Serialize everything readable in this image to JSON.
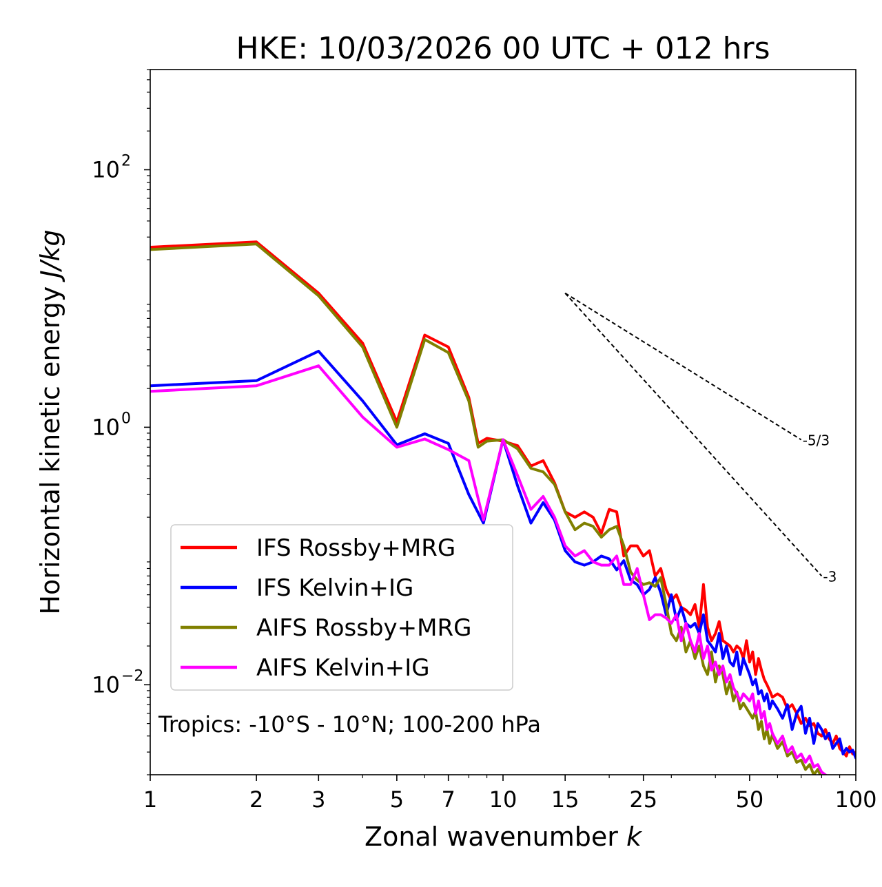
{
  "chart_data": {
    "type": "line",
    "title": "HKE: 10/03/2026 00 UTC + 012 hrs",
    "xlabel": "Zonal wavenumber",
    "xlabel_var": "k",
    "ylabel": "Horizontal kinetic energy",
    "ylabel_unit": "J/kg",
    "xscale": "log",
    "yscale": "log",
    "xlim": [
      1,
      100
    ],
    "ylim": [
      0.002,
      600
    ],
    "xticks": [
      {
        "value": 1,
        "label": "1"
      },
      {
        "value": 2,
        "label": "2"
      },
      {
        "value": 3,
        "label": "3"
      },
      {
        "value": 5,
        "label": "5"
      },
      {
        "value": 7,
        "label": "7"
      },
      {
        "value": 10,
        "label": "10"
      },
      {
        "value": 15,
        "label": "15"
      },
      {
        "value": 25,
        "label": "25"
      },
      {
        "value": 50,
        "label": "50"
      },
      {
        "value": 100,
        "label": "100"
      }
    ],
    "yticks": [
      {
        "value": 0.01,
        "base": "10",
        "exp": "−2"
      },
      {
        "value": 1,
        "base": "10",
        "exp": "0"
      },
      {
        "value": 100,
        "base": "10",
        "exp": "2"
      }
    ],
    "annotation": "Tropics: -10°S - 10°N; 100-200 hPa",
    "legend_position": "lower-left",
    "reference_lines": [
      {
        "label": "-5/3",
        "x0": 15,
        "y0": 11,
        "x1": 70,
        "y1": 0.8
      },
      {
        "label": "-3",
        "x0": 15,
        "y0": 11,
        "x1": 80,
        "y1": 0.07
      }
    ],
    "series": [
      {
        "name": "IFS Rossby+MRG",
        "color": "#ff0000",
        "points": [
          [
            1,
            25
          ],
          [
            2,
            27.5
          ],
          [
            3,
            11
          ],
          [
            4,
            4.5
          ],
          [
            5,
            1.1
          ],
          [
            6,
            5.2
          ],
          [
            7,
            4.2
          ],
          [
            8,
            1.7
          ],
          [
            8.5,
            0.75
          ],
          [
            9,
            0.82
          ],
          [
            10,
            0.78
          ],
          [
            11,
            0.72
          ],
          [
            12,
            0.5
          ],
          [
            13,
            0.55
          ],
          [
            14,
            0.37
          ],
          [
            15,
            0.22
          ],
          [
            16,
            0.2
          ],
          [
            17,
            0.22
          ],
          [
            18,
            0.2
          ],
          [
            19,
            0.15
          ],
          [
            20,
            0.23
          ],
          [
            21,
            0.22
          ],
          [
            22,
            0.1
          ],
          [
            23,
            0.12
          ],
          [
            24,
            0.12
          ],
          [
            25,
            0.1
          ],
          [
            26,
            0.11
          ],
          [
            27,
            0.07
          ],
          [
            28,
            0.08
          ],
          [
            29,
            0.055
          ],
          [
            30,
            0.045
          ],
          [
            31,
            0.05
          ],
          [
            32,
            0.04
          ],
          [
            33,
            0.038
          ],
          [
            34,
            0.035
          ],
          [
            35,
            0.042
          ],
          [
            36,
            0.028
          ],
          [
            37,
            0.06
          ],
          [
            38,
            0.028
          ],
          [
            39,
            0.022
          ],
          [
            40,
            0.025
          ],
          [
            41,
            0.031
          ],
          [
            42,
            0.022
          ],
          [
            43,
            0.021
          ],
          [
            44,
            0.02
          ],
          [
            45,
            0.018
          ],
          [
            46,
            0.02
          ],
          [
            47,
            0.019
          ],
          [
            48,
            0.016
          ],
          [
            49,
            0.022
          ],
          [
            50,
            0.015
          ],
          [
            51,
            0.018
          ],
          [
            52,
            0.012
          ],
          [
            53,
            0.016
          ],
          [
            54,
            0.013
          ],
          [
            55,
            0.011
          ],
          [
            56,
            0.01
          ],
          [
            57,
            0.009
          ],
          [
            58,
            0.008
          ],
          [
            60,
            0.0085
          ],
          [
            62,
            0.008
          ],
          [
            64,
            0.0065
          ],
          [
            66,
            0.007
          ],
          [
            68,
            0.006
          ],
          [
            70,
            0.005
          ],
          [
            72,
            0.0055
          ],
          [
            74,
            0.0048
          ],
          [
            76,
            0.005
          ],
          [
            78,
            0.0042
          ],
          [
            80,
            0.004
          ],
          [
            82,
            0.0045
          ],
          [
            84,
            0.0038
          ],
          [
            86,
            0.0035
          ],
          [
            88,
            0.004
          ],
          [
            90,
            0.0032
          ],
          [
            92,
            0.003
          ],
          [
            94,
            0.0028
          ],
          [
            96,
            0.0033
          ],
          [
            98,
            0.0029
          ],
          [
            100,
            0.003
          ]
        ]
      },
      {
        "name": "IFS Kelvin+IG",
        "color": "#0000ff",
        "points": [
          [
            1,
            2.1
          ],
          [
            2,
            2.3
          ],
          [
            3,
            3.9
          ],
          [
            4,
            1.6
          ],
          [
            5,
            0.73
          ],
          [
            6,
            0.89
          ],
          [
            7,
            0.75
          ],
          [
            8,
            0.3
          ],
          [
            8.8,
            0.18
          ],
          [
            10,
            0.8
          ],
          [
            11,
            0.35
          ],
          [
            12,
            0.18
          ],
          [
            13,
            0.26
          ],
          [
            14,
            0.19
          ],
          [
            15,
            0.11
          ],
          [
            16,
            0.09
          ],
          [
            17,
            0.085
          ],
          [
            18,
            0.09
          ],
          [
            19,
            0.1
          ],
          [
            20,
            0.095
          ],
          [
            21,
            0.078
          ],
          [
            22,
            0.092
          ],
          [
            23,
            0.065
          ],
          [
            24,
            0.06
          ],
          [
            25,
            0.05
          ],
          [
            26,
            0.055
          ],
          [
            27,
            0.068
          ],
          [
            28,
            0.052
          ],
          [
            29,
            0.035
          ],
          [
            30,
            0.05
          ],
          [
            31,
            0.032
          ],
          [
            32,
            0.04
          ],
          [
            33,
            0.03
          ],
          [
            34,
            0.028
          ],
          [
            35,
            0.03
          ],
          [
            36,
            0.025
          ],
          [
            37,
            0.035
          ],
          [
            38,
            0.022
          ],
          [
            39,
            0.02
          ],
          [
            40,
            0.018
          ],
          [
            41,
            0.025
          ],
          [
            42,
            0.016
          ],
          [
            43,
            0.02
          ],
          [
            44,
            0.015
          ],
          [
            45,
            0.014
          ],
          [
            46,
            0.018
          ],
          [
            47,
            0.012
          ],
          [
            48,
            0.016
          ],
          [
            50,
            0.012
          ],
          [
            51,
            0.01
          ],
          [
            52,
            0.011
          ],
          [
            53,
            0.0085
          ],
          [
            54,
            0.009
          ],
          [
            55,
            0.0075
          ],
          [
            56,
            0.0085
          ],
          [
            57,
            0.0065
          ],
          [
            58,
            0.0075
          ],
          [
            60,
            0.0065
          ],
          [
            62,
            0.0055
          ],
          [
            64,
            0.007
          ],
          [
            66,
            0.0045
          ],
          [
            68,
            0.006
          ],
          [
            70,
            0.0068
          ],
          [
            72,
            0.0042
          ],
          [
            74,
            0.0055
          ],
          [
            76,
            0.0035
          ],
          [
            78,
            0.005
          ],
          [
            80,
            0.0045
          ],
          [
            82,
            0.0038
          ],
          [
            84,
            0.0042
          ],
          [
            86,
            0.0032
          ],
          [
            88,
            0.0035
          ],
          [
            90,
            0.0038
          ],
          [
            92,
            0.0029
          ],
          [
            94,
            0.0032
          ],
          [
            96,
            0.003
          ],
          [
            98,
            0.0031
          ],
          [
            100,
            0.0027
          ]
        ]
      },
      {
        "name": "AIFS Rossby+MRG",
        "color": "#808000",
        "points": [
          [
            1,
            24
          ],
          [
            2,
            26.5
          ],
          [
            3,
            10.5
          ],
          [
            4,
            4.2
          ],
          [
            5,
            1.0
          ],
          [
            6,
            4.8
          ],
          [
            7,
            3.8
          ],
          [
            8,
            1.6
          ],
          [
            8.5,
            0.7
          ],
          [
            9,
            0.78
          ],
          [
            10,
            0.8
          ],
          [
            11,
            0.68
          ],
          [
            12,
            0.48
          ],
          [
            13,
            0.45
          ],
          [
            14,
            0.36
          ],
          [
            15,
            0.22
          ],
          [
            16,
            0.16
          ],
          [
            17,
            0.18
          ],
          [
            18,
            0.17
          ],
          [
            19,
            0.14
          ],
          [
            20,
            0.16
          ],
          [
            21,
            0.17
          ],
          [
            22,
            0.12
          ],
          [
            23,
            0.075
          ],
          [
            24,
            0.065
          ],
          [
            25,
            0.06
          ],
          [
            26,
            0.062
          ],
          [
            27,
            0.058
          ],
          [
            28,
            0.068
          ],
          [
            29,
            0.042
          ],
          [
            30,
            0.025
          ],
          [
            31,
            0.022
          ],
          [
            32,
            0.028
          ],
          [
            33,
            0.018
          ],
          [
            34,
            0.022
          ],
          [
            35,
            0.016
          ],
          [
            36,
            0.02
          ],
          [
            37,
            0.014
          ],
          [
            38,
            0.012
          ],
          [
            39,
            0.018
          ],
          [
            40,
            0.0105
          ],
          [
            41,
            0.014
          ],
          [
            42,
            0.012
          ],
          [
            43,
            0.0085
          ],
          [
            44,
            0.0105
          ],
          [
            45,
            0.0075
          ],
          [
            46,
            0.0088
          ],
          [
            47,
            0.0065
          ],
          [
            48,
            0.0072
          ],
          [
            50,
            0.006
          ],
          [
            51,
            0.0055
          ],
          [
            52,
            0.0062
          ],
          [
            53,
            0.0045
          ],
          [
            54,
            0.0052
          ],
          [
            55,
            0.0038
          ],
          [
            56,
            0.0045
          ],
          [
            57,
            0.0035
          ],
          [
            58,
            0.0041
          ],
          [
            60,
            0.0032
          ],
          [
            62,
            0.0036
          ],
          [
            64,
            0.0028
          ],
          [
            66,
            0.003
          ],
          [
            68,
            0.0025
          ],
          [
            70,
            0.0026
          ],
          [
            72,
            0.0022
          ],
          [
            74,
            0.0024
          ],
          [
            76,
            0.002
          ],
          [
            78,
            0.0022
          ],
          [
            80,
            0.0019
          ],
          [
            84,
            0.0017
          ],
          [
            88,
            0.0016
          ]
        ]
      },
      {
        "name": "AIFS Kelvin+IG",
        "color": "#ff00ff",
        "points": [
          [
            1,
            1.9
          ],
          [
            2,
            2.1
          ],
          [
            3,
            3.0
          ],
          [
            4,
            1.2
          ],
          [
            5,
            0.7
          ],
          [
            6,
            0.81
          ],
          [
            7,
            0.67
          ],
          [
            8,
            0.55
          ],
          [
            8.8,
            0.19
          ],
          [
            10,
            0.8
          ],
          [
            11,
            0.42
          ],
          [
            12,
            0.23
          ],
          [
            13,
            0.29
          ],
          [
            14,
            0.2
          ],
          [
            15,
            0.12
          ],
          [
            16,
            0.1
          ],
          [
            17,
            0.11
          ],
          [
            18,
            0.09
          ],
          [
            19,
            0.085
          ],
          [
            20,
            0.085
          ],
          [
            21,
            0.1
          ],
          [
            22,
            0.06
          ],
          [
            23,
            0.06
          ],
          [
            24,
            0.08
          ],
          [
            25,
            0.05
          ],
          [
            26,
            0.032
          ],
          [
            27,
            0.035
          ],
          [
            28,
            0.035
          ],
          [
            29,
            0.033
          ],
          [
            30,
            0.03
          ],
          [
            31,
            0.035
          ],
          [
            32,
            0.022
          ],
          [
            33,
            0.03
          ],
          [
            34,
            0.022
          ],
          [
            35,
            0.018
          ],
          [
            36,
            0.025
          ],
          [
            37,
            0.016
          ],
          [
            38,
            0.02
          ],
          [
            39,
            0.013
          ],
          [
            40,
            0.015
          ],
          [
            41,
            0.012
          ],
          [
            42,
            0.014
          ],
          [
            43,
            0.0105
          ],
          [
            44,
            0.012
          ],
          [
            45,
            0.0095
          ],
          [
            46,
            0.0085
          ],
          [
            47,
            0.0075
          ],
          [
            48,
            0.0085
          ],
          [
            50,
            0.0075
          ],
          [
            51,
            0.0085
          ],
          [
            52,
            0.006
          ],
          [
            53,
            0.0075
          ],
          [
            54,
            0.0055
          ],
          [
            55,
            0.0062
          ],
          [
            56,
            0.0045
          ],
          [
            57,
            0.005
          ],
          [
            58,
            0.0042
          ],
          [
            60,
            0.0035
          ],
          [
            62,
            0.004
          ],
          [
            64,
            0.003
          ],
          [
            66,
            0.0033
          ],
          [
            68,
            0.0027
          ],
          [
            70,
            0.0029
          ],
          [
            72,
            0.0025
          ],
          [
            74,
            0.0028
          ],
          [
            76,
            0.0023
          ],
          [
            78,
            0.0024
          ],
          [
            80,
            0.0021
          ],
          [
            84,
            0.0019
          ],
          [
            88,
            0.0017
          ]
        ]
      }
    ]
  }
}
